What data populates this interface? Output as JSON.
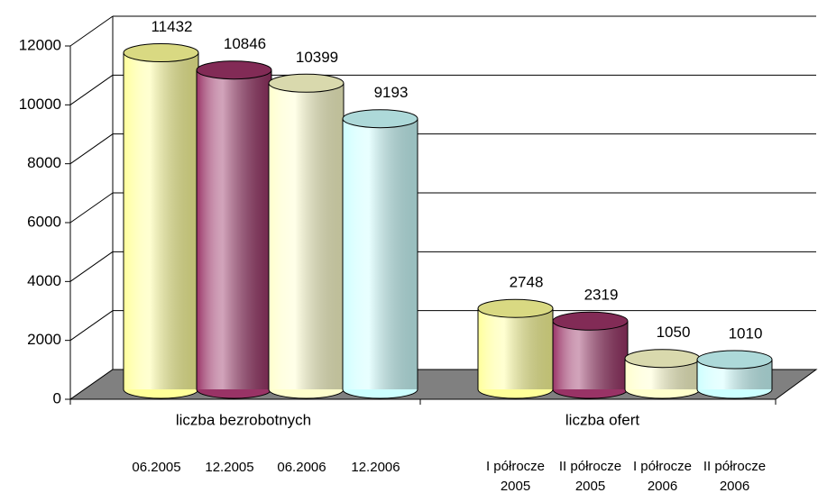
{
  "chart_data": {
    "type": "bar3d",
    "ylim": [
      0,
      12000
    ],
    "yticks": [
      0,
      2000,
      4000,
      6000,
      8000,
      10000,
      12000
    ],
    "grid": true,
    "colors": [
      "#ffff99",
      "#993366",
      "#ffffcc",
      "#ccffff"
    ],
    "groups": [
      {
        "label": "liczba bezrobotnych",
        "bars": [
          [
            "06.2005"
          ],
          [
            "12.2005"
          ],
          [
            "06.2006"
          ],
          [
            "12.2006"
          ]
        ],
        "values": [
          11432,
          10846,
          10399,
          9193
        ]
      },
      {
        "label": "liczba ofert",
        "bars": [
          [
            "I półrocze",
            "2005"
          ],
          [
            "II półrocze",
            "2005"
          ],
          [
            "I półrocze",
            "2006"
          ],
          [
            "II półrocze",
            "2006"
          ]
        ],
        "values": [
          2748,
          2319,
          1050,
          1010
        ]
      }
    ]
  }
}
